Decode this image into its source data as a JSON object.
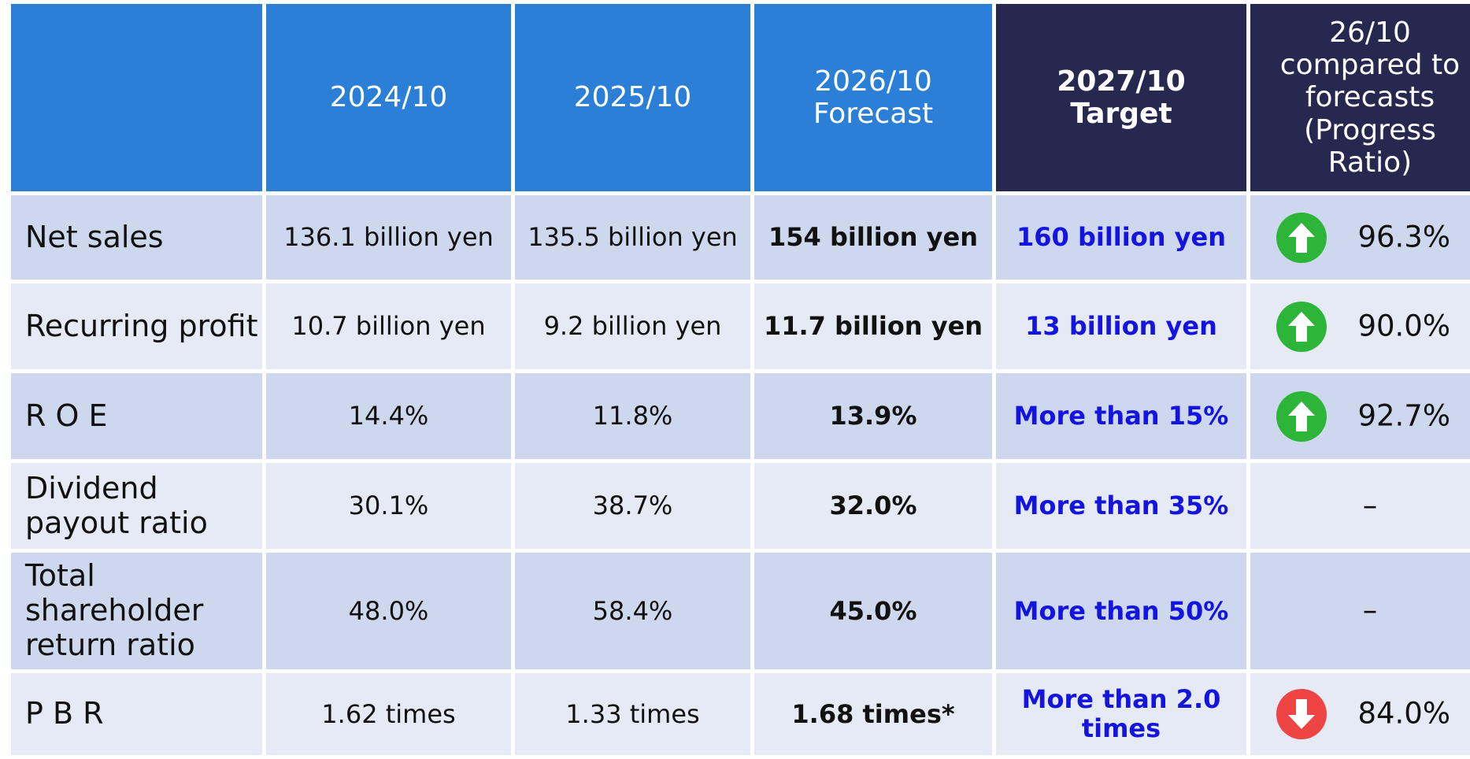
{
  "header": {
    "columns": [
      "2024/10",
      "2025/10",
      "2026/10\nForecast",
      "2027/10\nTarget",
      "26/10\ncompared to\nforecasts\n(Progress\nRatio)"
    ]
  },
  "rows": [
    {
      "label": "Net sales",
      "values": [
        "136.1 billion yen",
        "135.5 billion yen",
        "154 billion yen",
        "160 billion yen"
      ],
      "progress": {
        "direction": "up",
        "text": "96.3%"
      }
    },
    {
      "label": "Recurring profit",
      "values": [
        "10.7 billion yen",
        "9.2 billion yen",
        "11.7 billion yen",
        "13 billion yen"
      ],
      "progress": {
        "direction": "up",
        "text": "90.0%"
      }
    },
    {
      "label": "R O E",
      "values": [
        "14.4%",
        "11.8%",
        "13.9%",
        "More than 15%"
      ],
      "progress": {
        "direction": "up",
        "text": "92.7%"
      }
    },
    {
      "label": "Dividend\npayout ratio",
      "values": [
        "30.1%",
        "38.7%",
        "32.0%",
        "More than 35%"
      ],
      "progress": {
        "text": "–"
      }
    },
    {
      "label": "Total\nshareholder\nreturn ratio",
      "values": [
        "48.0%",
        "58.4%",
        "45.0%",
        "More than 50%"
      ],
      "progress": {
        "text": "–"
      }
    },
    {
      "label": "P B R",
      "values": [
        "1.62 times",
        "1.33 times",
        "1.68 times*",
        "More than 2.0\ntimes"
      ],
      "progress": {
        "direction": "down",
        "text": "84.0%"
      }
    }
  ]
}
